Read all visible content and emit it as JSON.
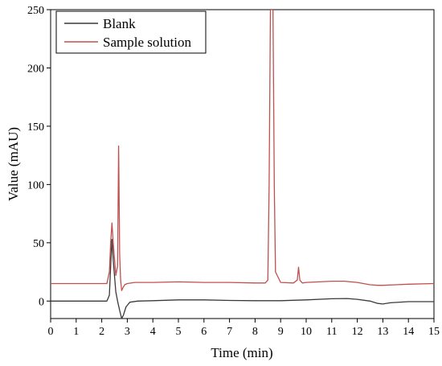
{
  "chart_data": {
    "type": "line",
    "title": "",
    "xlabel": "Time (min)",
    "ylabel": "Value (mAU)",
    "xlim": [
      0,
      15
    ],
    "ylim": [
      -15,
      250
    ],
    "xticks": [
      "0",
      "1",
      "2",
      "3",
      "4",
      "5",
      "6",
      "7",
      "8",
      "9",
      "10",
      "11",
      "12",
      "13",
      "14",
      "15"
    ],
    "yticks": [
      "0",
      "50",
      "100",
      "150",
      "200",
      "250"
    ],
    "grid": false,
    "legend_position": "top-left",
    "series": [
      {
        "name": "Blank",
        "color": "#3a3a3a",
        "x": [
          0,
          2.2,
          2.3,
          2.35,
          2.4,
          2.45,
          2.55,
          2.62,
          2.7,
          2.78,
          2.85,
          2.95,
          3.1,
          3.4,
          4,
          5,
          6,
          7,
          8,
          9,
          10,
          11,
          11.6,
          12,
          12.5,
          12.8,
          13,
          13.3,
          14,
          15
        ],
        "y": [
          0,
          0,
          5,
          30,
          53,
          35,
          8,
          0,
          -8,
          -15,
          -12,
          -5,
          -1,
          0,
          0.3,
          1,
          1,
          0.5,
          0.3,
          0.3,
          1,
          2,
          2.2,
          1.5,
          0,
          -2,
          -2.5,
          -1.5,
          -0.5,
          -0.5
        ]
      },
      {
        "name": "Sample solution",
        "color": "#c0504d",
        "x": [
          0,
          2.2,
          2.3,
          2.35,
          2.4,
          2.45,
          2.55,
          2.62,
          2.66,
          2.7,
          2.74,
          2.78,
          2.82,
          2.9,
          3.0,
          3.3,
          4,
          5,
          6,
          7,
          8,
          8.4,
          8.5,
          8.55,
          8.6,
          8.7,
          8.75,
          8.8,
          9.0,
          9.5,
          9.65,
          9.7,
          9.75,
          9.85,
          10,
          10.5,
          11,
          11.5,
          12,
          12.5,
          12.8,
          13,
          13.5,
          14,
          15
        ],
        "y": [
          15,
          15,
          25,
          50,
          67,
          50,
          22,
          30,
          133,
          40,
          18,
          9,
          11,
          14,
          15,
          16,
          16,
          16.5,
          16,
          16,
          15.5,
          15.5,
          18,
          100,
          250,
          250,
          100,
          25,
          16,
          15.5,
          18,
          29,
          18,
          15.5,
          16,
          16.5,
          17,
          17,
          16,
          14,
          13.5,
          13.5,
          14,
          14.5,
          15
        ]
      }
    ]
  }
}
